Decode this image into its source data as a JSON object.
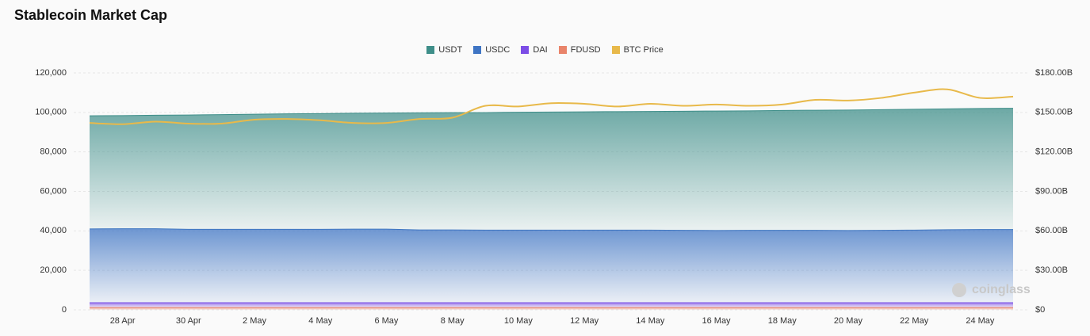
{
  "chart_data": {
    "type": "stacked_area_line",
    "title": "Stablecoin Market Cap",
    "watermark": "coinglass",
    "categories": [
      null,
      "28 Apr",
      null,
      "30 Apr",
      null,
      "2 May",
      null,
      "4 May",
      null,
      "6 May",
      null,
      "8 May",
      null,
      "10 May",
      null,
      "12 May",
      null,
      "14 May",
      null,
      "16 May",
      null,
      "18 May",
      null,
      "20 May",
      null,
      "22 May",
      null,
      "24 May",
      null
    ],
    "series": [
      {
        "name": "USDT",
        "color": "#3e8e89",
        "values": [
          57300,
          57300,
          57500,
          57900,
          58100,
          58300,
          58500,
          58600,
          58700,
          58800,
          59300,
          59400,
          59500,
          59700,
          59800,
          59900,
          60000,
          60100,
          60300,
          60500,
          60500,
          60700,
          60800,
          61000,
          61100,
          61200,
          61200,
          61300,
          61400
        ]
      },
      {
        "name": "USDC",
        "color": "#3f75c4",
        "values": [
          37400,
          37500,
          37500,
          37200,
          37200,
          37200,
          37200,
          37200,
          37300,
          37300,
          36900,
          36900,
          36800,
          36800,
          36800,
          36800,
          36800,
          36800,
          36700,
          36600,
          36700,
          36700,
          36700,
          36600,
          36700,
          36800,
          37000,
          37100,
          37100
        ]
      },
      {
        "name": "DAI",
        "color": "#7c4de6",
        "values": [
          2400,
          2400,
          2400,
          2400,
          2400,
          2400,
          2400,
          2400,
          2400,
          2400,
          2400,
          2400,
          2400,
          2400,
          2400,
          2400,
          2400,
          2400,
          2400,
          2400,
          2400,
          2400,
          2400,
          2400,
          2400,
          2400,
          2400,
          2400,
          2400
        ]
      },
      {
        "name": "FDUSD",
        "color": "#e9846a",
        "values": [
          1200,
          1200,
          1200,
          1200,
          1200,
          1200,
          1200,
          1200,
          1200,
          1200,
          1200,
          1200,
          1200,
          1200,
          1200,
          1200,
          1200,
          1200,
          1200,
          1200,
          1200,
          1200,
          1200,
          1200,
          1200,
          1200,
          1200,
          1200,
          1200
        ]
      },
      {
        "name": "BTC Price",
        "color": "#e8b94a",
        "axis": "y2",
        "values": [
          142,
          141,
          143,
          141.5,
          141.5,
          144.5,
          145,
          144,
          142,
          142,
          145,
          146,
          155,
          154.5,
          157,
          156.5,
          154.5,
          156.5,
          155,
          156,
          155,
          156,
          159.5,
          159,
          161,
          165,
          167.5,
          161,
          162
        ]
      }
    ],
    "stack_order": "bottom-up from last area series",
    "ylim": [
      0,
      120000
    ],
    "yticks": [
      0,
      {
        "value": 20000,
        "label": "20,000"
      },
      {
        "value": 40000,
        "label": "40,000"
      },
      {
        "value": 60000,
        "label": "60,000"
      },
      {
        "value": 80000,
        "label": "80,000"
      },
      {
        "value": 100000,
        "label": "100,000"
      },
      {
        "value": 120000,
        "label": "120,000"
      }
    ],
    "y2lim": [
      0,
      180
    ],
    "y2ticks": [
      {
        "value": 0,
        "label": "$0"
      },
      {
        "value": 30,
        "label": "$30.00B"
      },
      {
        "value": 60,
        "label": "$60.00B"
      },
      {
        "value": 90,
        "label": "$90.00B"
      },
      {
        "value": 120,
        "label": "$120.00B"
      },
      {
        "value": 150,
        "label": "$150.00B"
      },
      {
        "value": 180,
        "label": "$180.00B"
      }
    ],
    "grid": true,
    "legend": "top"
  }
}
